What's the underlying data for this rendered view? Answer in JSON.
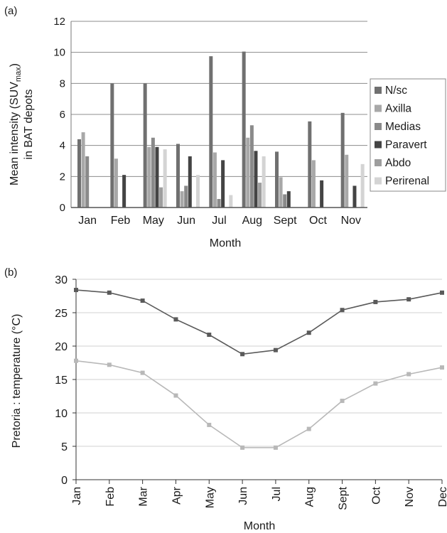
{
  "chart_data": [
    {
      "panel_label": "(a)",
      "type": "bar",
      "title": "",
      "xlabel": "Month",
      "ylabel_main": "Mean intensity (SUV",
      "ylabel_sub": "max",
      "ylabel_close": ")",
      "ylabel_line2": "in BAT depots",
      "ylim": [
        0,
        12
      ],
      "yticks": [
        "0",
        "2",
        "4",
        "6",
        "8",
        "10",
        "12"
      ],
      "grid": "horizontal",
      "legend": "right",
      "categories": [
        "Jan",
        "Feb",
        "May",
        "Jun",
        "Jul",
        "Aug",
        "Sept",
        "Oct",
        "Nov"
      ],
      "series": [
        {
          "name": "N/sc",
          "color": "#707070",
          "values": [
            4.4,
            8.0,
            8.0,
            4.1,
            9.75,
            10.05,
            3.6,
            5.55,
            6.1
          ]
        },
        {
          "name": "Axilla",
          "color": "#a8a8a8",
          "values": [
            4.85,
            3.15,
            3.9,
            1.05,
            3.55,
            4.5,
            1.95,
            3.05,
            3.4
          ]
        },
        {
          "name": "Medias",
          "color": "#8a8a8a",
          "values": [
            3.3,
            0,
            4.5,
            1.4,
            0.55,
            5.3,
            0.85,
            0,
            0
          ]
        },
        {
          "name": "Paravert",
          "color": "#444444",
          "values": [
            0,
            2.1,
            3.9,
            3.3,
            3.05,
            3.65,
            1.05,
            1.75,
            1.4
          ]
        },
        {
          "name": "Abdo",
          "color": "#9e9e9e",
          "values": [
            0,
            0,
            1.3,
            0,
            0,
            1.6,
            0,
            0,
            0
          ]
        },
        {
          "name": "Perirenal",
          "color": "#d4d4d4",
          "values": [
            0,
            0,
            3.75,
            2.1,
            0.8,
            3.3,
            0,
            0,
            2.8
          ]
        }
      ]
    },
    {
      "panel_label": "(b)",
      "type": "line",
      "title": "",
      "xlabel": "Month",
      "ylabel": "Pretoria : temperature (°C)",
      "ylim": [
        0,
        30
      ],
      "yticks": [
        "0",
        "5",
        "10",
        "15",
        "20",
        "25",
        "30"
      ],
      "grid": "horizontal",
      "categories": [
        "Jan",
        "Feb",
        "Mar",
        "Apr",
        "May",
        "Jun",
        "Jul",
        "Aug",
        "Sept",
        "Oct",
        "Nov",
        "Dec"
      ],
      "series": [
        {
          "color": "#5a5a5a",
          "values": [
            28.4,
            28.0,
            26.8,
            24.0,
            21.7,
            18.8,
            19.4,
            22.0,
            25.4,
            26.6,
            27.0,
            28.0
          ]
        },
        {
          "color": "#b8b8b8",
          "values": [
            17.8,
            17.2,
            16.0,
            12.6,
            8.2,
            4.8,
            4.8,
            7.6,
            11.8,
            14.4,
            15.8,
            16.8
          ]
        }
      ]
    }
  ]
}
